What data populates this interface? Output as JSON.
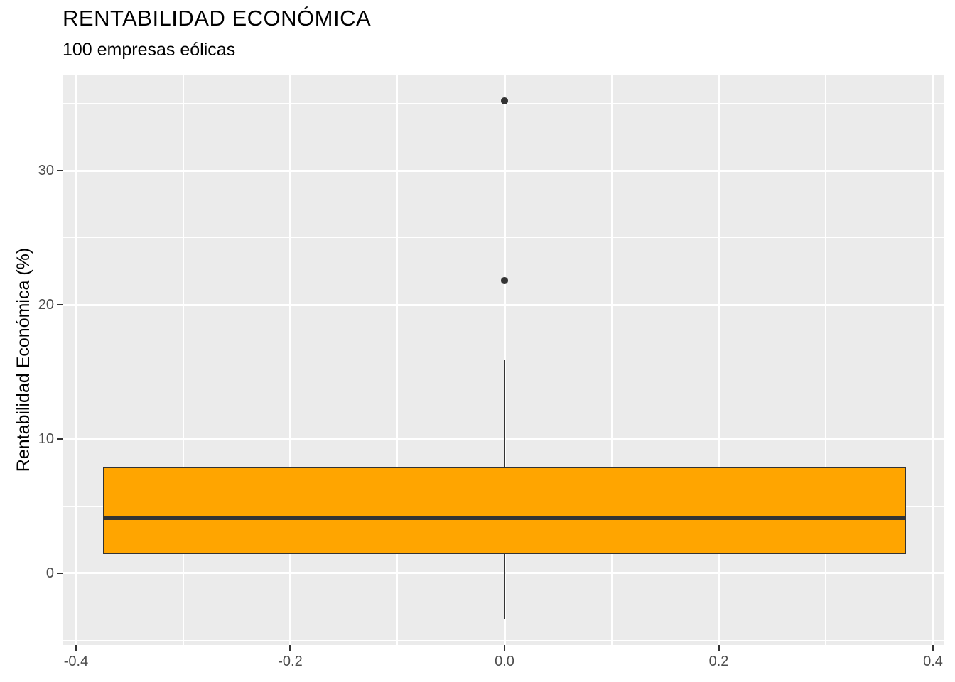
{
  "header": {
    "title": "RENTABILIDAD ECONÓMICA",
    "subtitle": "100 empresas eólicas"
  },
  "chart_data": {
    "type": "boxplot",
    "title": "RENTABILIDAD ECONÓMICA",
    "subtitle": "100 empresas eólicas",
    "xlabel": "",
    "ylabel": "Rentabilidad Económica (%)",
    "orientation": "vertical",
    "grid": "on",
    "legend": "none",
    "xlim": [
      -0.4126,
      0.4106
    ],
    "ylim": [
      -5.35,
      37.15
    ],
    "x_center": 0,
    "box_half_width": 0.375,
    "stats": {
      "whisker_low": -3.4,
      "q1": 1.45,
      "median": 4.1,
      "q3": 7.95,
      "whisker_high": 15.85
    },
    "outliers": [
      21.8,
      35.2
    ],
    "x_ticks": [
      {
        "value": -0.4,
        "label": "-0.4"
      },
      {
        "value": -0.2,
        "label": "-0.2"
      },
      {
        "value": 0.0,
        "label": "0.0"
      },
      {
        "value": 0.2,
        "label": "0.2"
      },
      {
        "value": 0.4,
        "label": "0.4"
      }
    ],
    "y_ticks": [
      {
        "value": 0,
        "label": "0"
      },
      {
        "value": 10,
        "label": "10"
      },
      {
        "value": 20,
        "label": "20"
      },
      {
        "value": 30,
        "label": "30"
      }
    ],
    "x_minor_ticks": [
      -0.3,
      -0.1,
      0.1,
      0.3
    ],
    "y_minor_ticks": [
      -5,
      5,
      15,
      25,
      35
    ],
    "colors": {
      "panel_background": "#EBEBEB",
      "gridline": "#FFFFFF",
      "box_fill": "#FFA500",
      "box_border": "#333333",
      "outlier_point": "#333333",
      "tick_mark": "#333333",
      "tick_label": "#4D4D4D",
      "title_text": "#000000"
    }
  }
}
